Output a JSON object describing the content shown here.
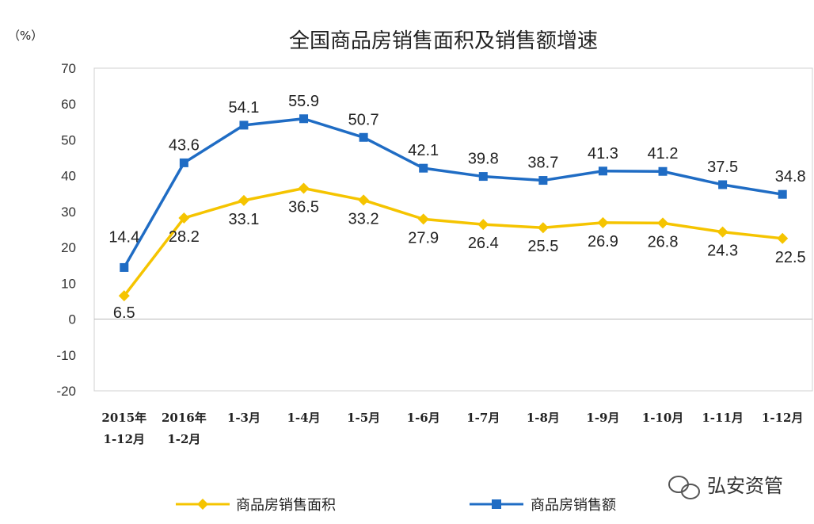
{
  "chart_data": {
    "type": "line",
    "title": "全国商品房销售面积及销售额增速",
    "unit_label": "（%）",
    "categories": [
      [
        "2015年",
        "1-12月"
      ],
      [
        "2016年",
        "1-2月"
      ],
      [
        "1-3月"
      ],
      [
        "1-4月"
      ],
      [
        "1-5月"
      ],
      [
        "1-6月"
      ],
      [
        "1-7月"
      ],
      [
        "1-8月"
      ],
      [
        "1-9月"
      ],
      [
        "1-10月"
      ],
      [
        "1-11月"
      ],
      [
        "1-12月"
      ]
    ],
    "ylim": [
      -20,
      70
    ],
    "yticks": [
      70,
      60,
      50,
      40,
      30,
      20,
      10,
      0,
      -10,
      -20
    ],
    "grid": false,
    "legend_position": "bottom",
    "series": [
      {
        "name": "商品房销售面积",
        "color": "#F5C400",
        "marker": "diamond",
        "label_position": "below",
        "values": [
          6.5,
          28.2,
          33.1,
          36.5,
          33.2,
          27.9,
          26.4,
          25.5,
          26.9,
          26.8,
          24.3,
          22.5
        ]
      },
      {
        "name": "商品房销售额",
        "color": "#1F6CC4",
        "marker": "square",
        "label_position": "above",
        "values": [
          14.4,
          43.6,
          54.1,
          55.9,
          50.7,
          42.1,
          39.8,
          38.7,
          41.3,
          41.2,
          37.5,
          34.8
        ]
      }
    ]
  },
  "watermark": {
    "text": "弘安资管",
    "icon": "wechat-icon"
  }
}
